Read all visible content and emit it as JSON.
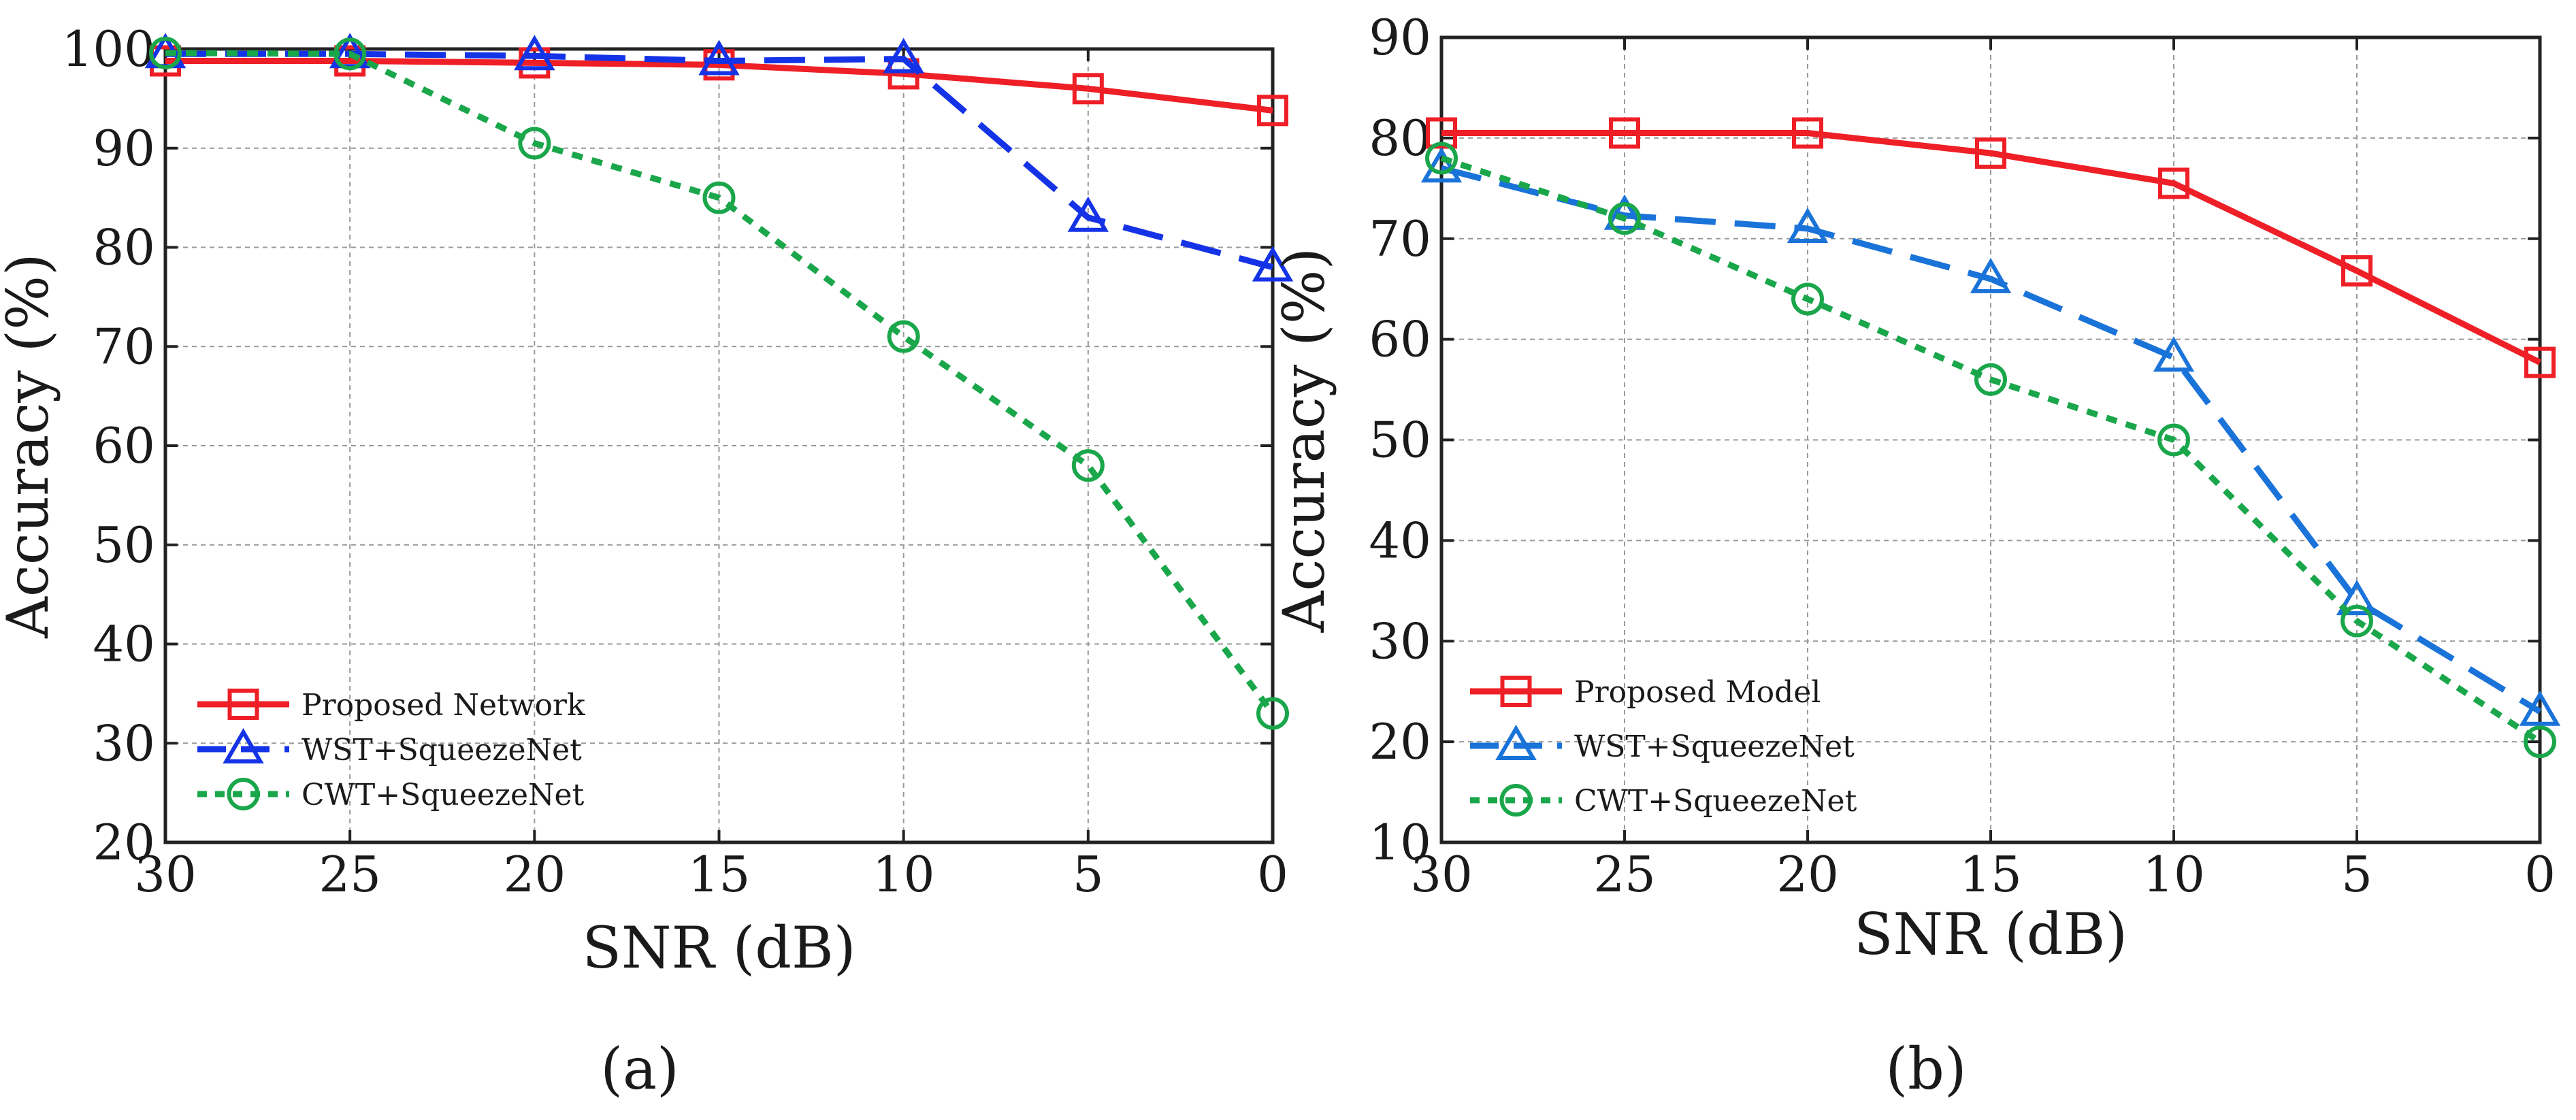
{
  "chart_data": [
    {
      "type": "line",
      "panel_label": "(a)",
      "xlabel": "SNR (dB)",
      "ylabel": "Accuracy (%)",
      "xlim": [
        30,
        0
      ],
      "ylim": [
        20,
        100
      ],
      "xticks": [
        30,
        25,
        20,
        15,
        10,
        5,
        0
      ],
      "yticks": [
        20,
        30,
        40,
        50,
        60,
        70,
        80,
        90,
        100
      ],
      "grid": true,
      "legend_position": "bottom-left",
      "x": [
        30,
        25,
        20,
        15,
        10,
        5,
        0
      ],
      "series": [
        {
          "name": "Proposed Network",
          "values": [
            98.8,
            98.8,
            98.6,
            98.4,
            97.5,
            96.0,
            93.8
          ],
          "color": "#ee1f26",
          "marker": "square",
          "dash": "solid"
        },
        {
          "name": "WST+SqueezeNet",
          "values": [
            99.5,
            99.5,
            99.3,
            98.8,
            99.0,
            83.0,
            78.0
          ],
          "color": "#1533e6",
          "marker": "triangle",
          "dash": "dashed"
        },
        {
          "name": "CWT+SqueezeNet",
          "values": [
            99.6,
            99.5,
            90.5,
            85.0,
            71.0,
            58.0,
            33.0
          ],
          "color": "#1aa64a",
          "marker": "circle",
          "dash": "dotted"
        }
      ]
    },
    {
      "type": "line",
      "panel_label": "(b)",
      "xlabel": "SNR (dB)",
      "ylabel": "Accuracy (%)",
      "xlim": [
        30,
        0
      ],
      "ylim": [
        10,
        90
      ],
      "xticks": [
        30,
        25,
        20,
        15,
        10,
        5,
        0
      ],
      "yticks": [
        10,
        20,
        30,
        40,
        50,
        60,
        70,
        80,
        90
      ],
      "grid": true,
      "legend_position": "bottom-left",
      "x": [
        30,
        25,
        20,
        15,
        10,
        5,
        0
      ],
      "series": [
        {
          "name": "Proposed Model",
          "values": [
            80.5,
            80.5,
            80.5,
            78.5,
            75.5,
            66.8,
            57.7
          ],
          "color": "#ee1f26",
          "marker": "square",
          "dash": "solid"
        },
        {
          "name": "WST+SqueezeNet",
          "values": [
            77.0,
            72.3,
            71.0,
            66.0,
            58.2,
            34.0,
            23.0
          ],
          "color": "#1a73d9",
          "marker": "triangle",
          "dash": "dashed"
        },
        {
          "name": "CWT+SqueezeNet",
          "values": [
            78.0,
            72.0,
            64.0,
            56.0,
            50.0,
            32.0,
            20.0
          ],
          "color": "#1aa64a",
          "marker": "circle",
          "dash": "dotted"
        }
      ]
    }
  ]
}
